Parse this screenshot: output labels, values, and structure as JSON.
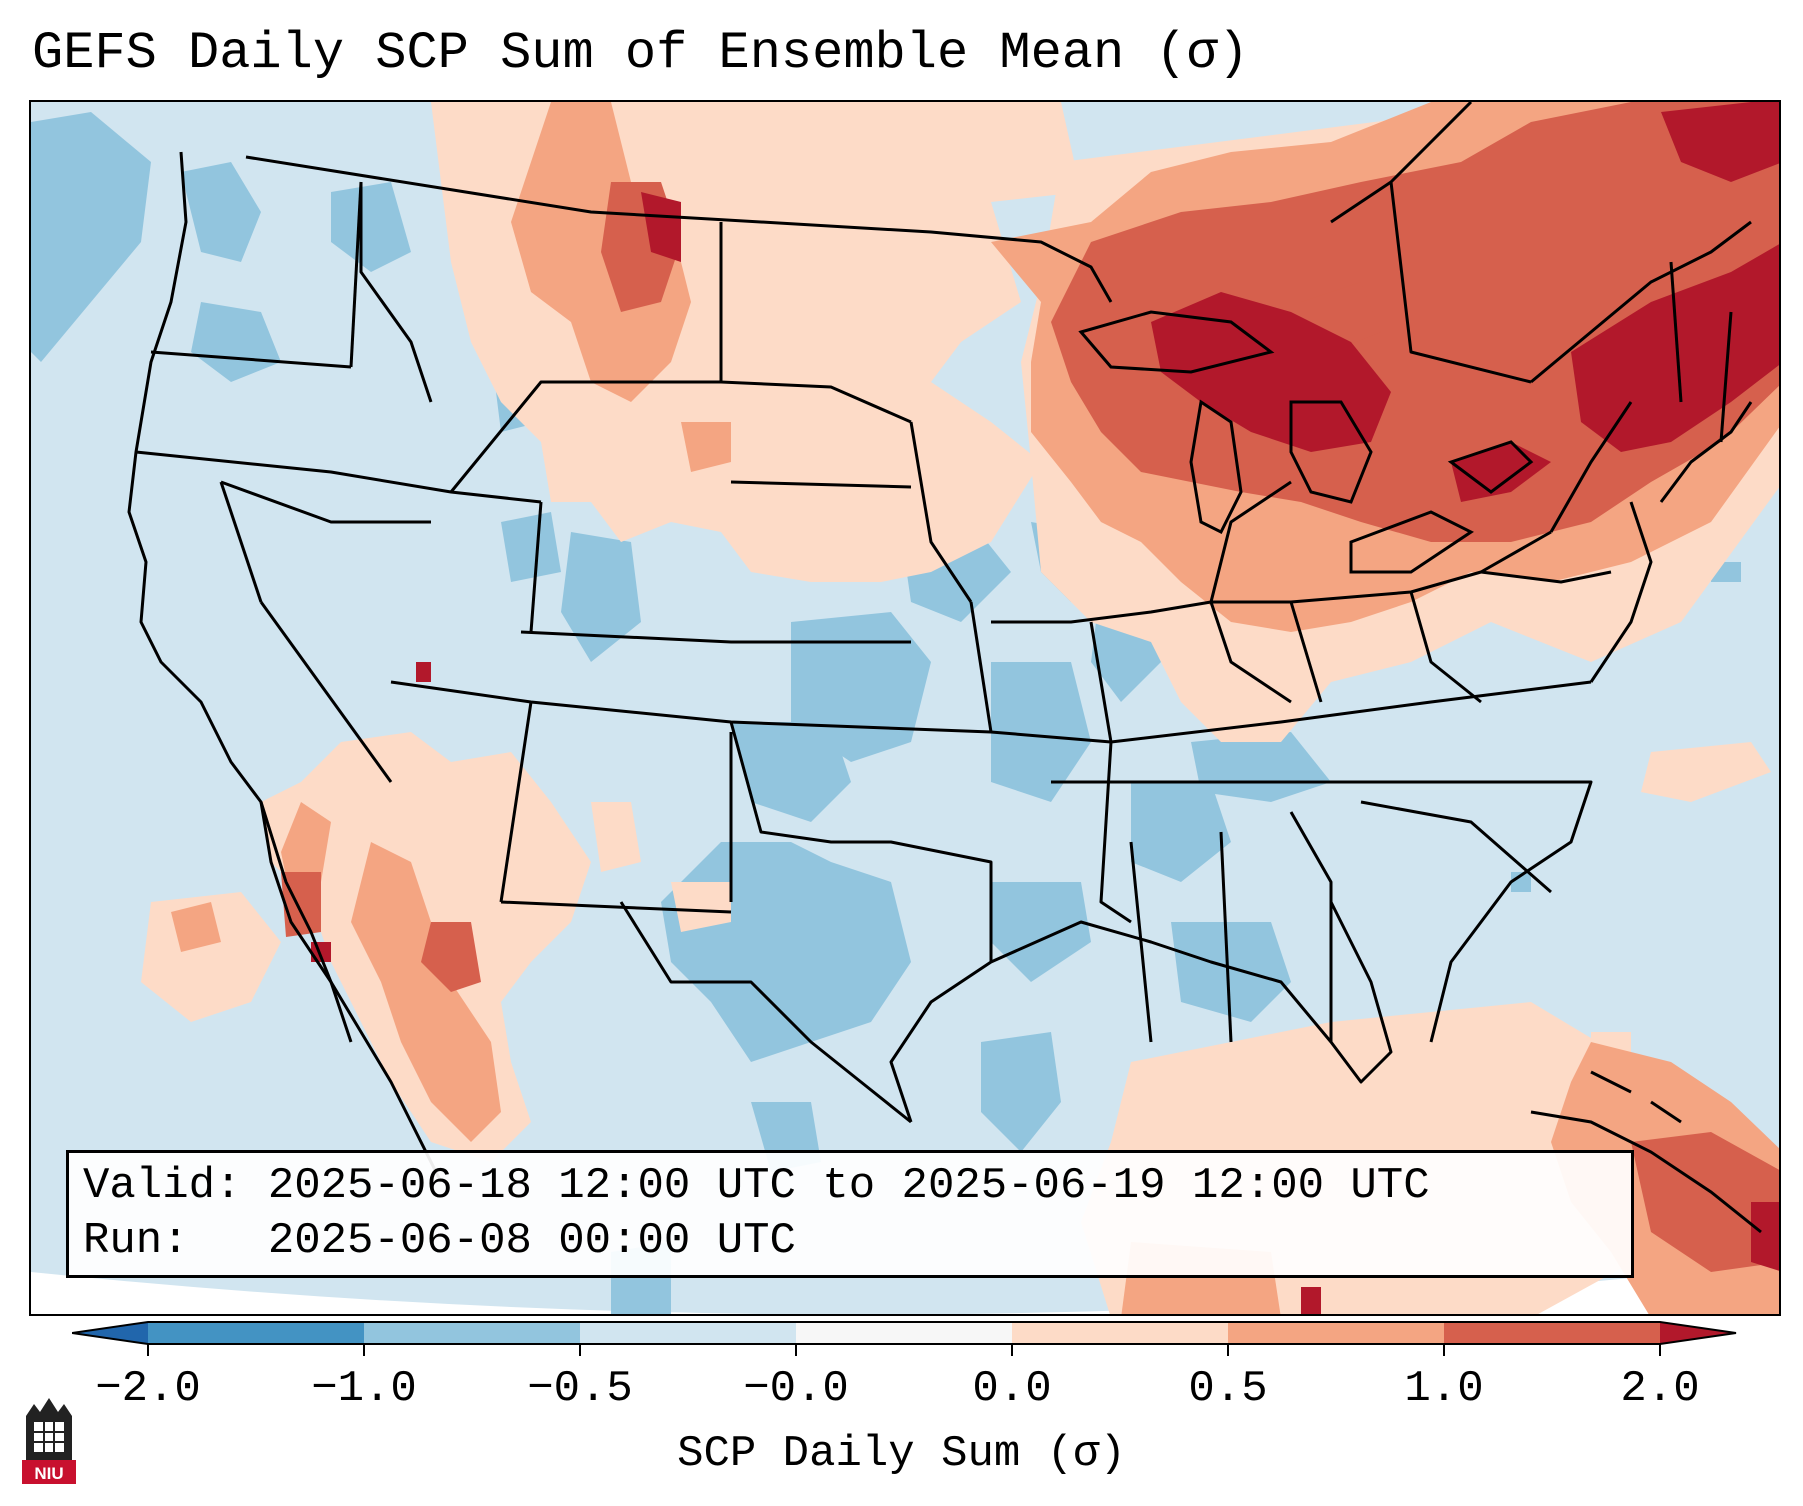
{
  "title": "GEFS Daily SCP Sum of Ensemble Mean (σ)",
  "valid_box": {
    "valid_line": "Valid: 2025-06-18 12:00 UTC to 2025-06-19 12:00 UTC",
    "run_line": "Run:   2025-06-08 00:00 UTC"
  },
  "colorbar": {
    "label": "SCP Daily Sum (σ)",
    "tick_labels": [
      "−2.0",
      "−1.0",
      "−0.5",
      "−0.0",
      "0.0",
      "0.5",
      "1.0",
      "2.0"
    ],
    "boundaries": [
      -2.0,
      -1.0,
      -0.5,
      -0.0,
      0.0,
      0.5,
      1.0,
      2.0
    ],
    "colors": [
      "#4393c3",
      "#92c5de",
      "#d1e5f0",
      "#f7f7f7",
      "#fddbc7",
      "#f4a582",
      "#d6604d"
    ],
    "under_color": "#2166ac",
    "over_color": "#b2182b"
  },
  "logo": {
    "text": "NIU",
    "brand_color": "#c8102e"
  },
  "map": {
    "background_color": "#d1e5f0",
    "anomaly_levels": {
      "strong_negative": "#92c5de",
      "weak_positive": "#fddbc7",
      "moderate_positive": "#f4a582",
      "strong_positive": "#d6604d",
      "extreme_positive": "#b2182b"
    }
  }
}
